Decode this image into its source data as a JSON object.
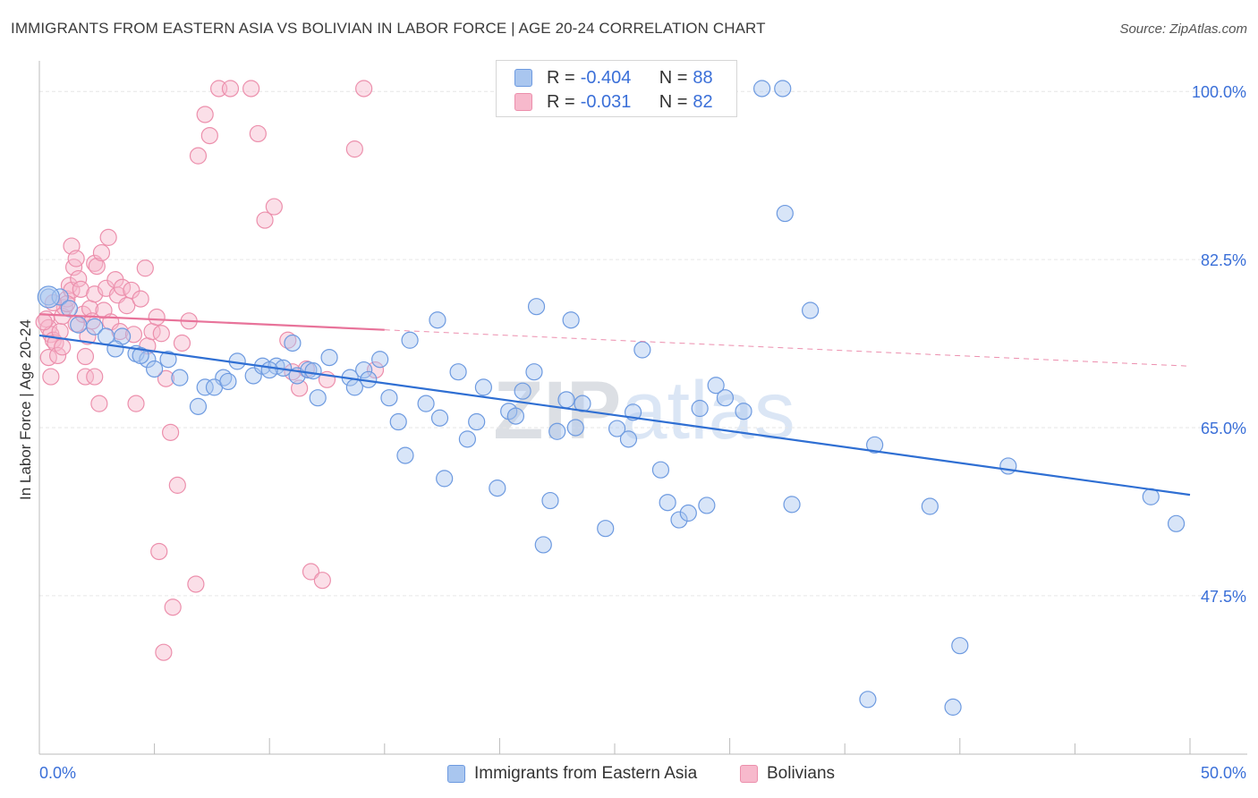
{
  "title": "IMMIGRANTS FROM EASTERN ASIA VS BOLIVIAN IN LABOR FORCE | AGE 20-24 CORRELATION CHART",
  "source": "Source: ZipAtlas.com",
  "watermark": "ZIPatlas",
  "legend": {
    "r_label": "R =",
    "n_label": "N =",
    "items": [
      {
        "r": "-0.404",
        "n": "88",
        "fill": "#a9c6ef",
        "stroke": "#6d9ae0"
      },
      {
        "r": "-0.031",
        "n": "82",
        "fill": "#f7b9cc",
        "stroke": "#ec8fac"
      }
    ]
  },
  "chart_data": {
    "type": "scatter",
    "xlabel": "",
    "ylabel": "In Labor Force | Age 20-24",
    "xlim": [
      0,
      50
    ],
    "ylim": [
      31,
      103
    ],
    "x_tick_labels": [
      "0.0%",
      "50.0%"
    ],
    "y_ticks": [
      47.5,
      65.0,
      82.5,
      100.0
    ],
    "y_tick_labels": [
      "47.5%",
      "65.0%",
      "82.5%",
      "100.0%"
    ],
    "grid": true,
    "legend_position": "top-center",
    "series": [
      {
        "name": "Immigrants from Eastern Asia",
        "color": "#6d9ae0",
        "fill": "#a9c6ef",
        "trend": {
          "x0": 0,
          "y0": 74.6,
          "x1": 50,
          "y1": 58.0,
          "solid_to": 50,
          "color": "#2f6fd3"
        },
        "points": [
          [
            0.4,
            78.6
          ],
          [
            0.9,
            78.6
          ],
          [
            1.3,
            77.4
          ],
          [
            1.7,
            75.7
          ],
          [
            2.4,
            75.5
          ],
          [
            2.9,
            74.5
          ],
          [
            3.6,
            74.5
          ],
          [
            3.3,
            73.2
          ],
          [
            4.2,
            72.7
          ],
          [
            4.7,
            72.1
          ],
          [
            4.4,
            72.5
          ],
          [
            5.6,
            72.1
          ],
          [
            5.0,
            71.1
          ],
          [
            6.1,
            70.2
          ],
          [
            6.9,
            67.2
          ],
          [
            8.0,
            70.2
          ],
          [
            7.2,
            69.2
          ],
          [
            7.6,
            69.2
          ],
          [
            8.2,
            69.8
          ],
          [
            9.3,
            70.4
          ],
          [
            8.6,
            71.9
          ],
          [
            9.7,
            71.4
          ],
          [
            10.3,
            71.4
          ],
          [
            10.6,
            71.2
          ],
          [
            10.0,
            71.0
          ],
          [
            11.0,
            73.8
          ],
          [
            11.2,
            70.4
          ],
          [
            11.7,
            71.0
          ],
          [
            12.1,
            68.1
          ],
          [
            11.9,
            70.9
          ],
          [
            12.6,
            72.3
          ],
          [
            13.5,
            70.2
          ],
          [
            13.7,
            69.2
          ],
          [
            14.1,
            71.0
          ],
          [
            14.3,
            70.0
          ],
          [
            14.8,
            72.1
          ],
          [
            15.2,
            68.1
          ],
          [
            15.6,
            65.6
          ],
          [
            15.9,
            62.1
          ],
          [
            16.1,
            74.1
          ],
          [
            16.8,
            67.5
          ],
          [
            17.3,
            76.2
          ],
          [
            17.4,
            66.0
          ],
          [
            17.6,
            59.7
          ],
          [
            18.2,
            70.8
          ],
          [
            18.6,
            63.8
          ],
          [
            19.3,
            69.2
          ],
          [
            19.9,
            58.7
          ],
          [
            19.0,
            65.6
          ],
          [
            20.4,
            66.7
          ],
          [
            20.7,
            66.2
          ],
          [
            21.0,
            68.8
          ],
          [
            21.5,
            70.8
          ],
          [
            21.6,
            77.6
          ],
          [
            22.2,
            57.4
          ],
          [
            21.9,
            52.8
          ],
          [
            22.5,
            64.6
          ],
          [
            22.9,
            67.9
          ],
          [
            23.1,
            76.2
          ],
          [
            23.3,
            65.0
          ],
          [
            23.6,
            67.5
          ],
          [
            24.6,
            54.5
          ],
          [
            25.1,
            64.9
          ],
          [
            25.6,
            63.8
          ],
          [
            25.8,
            66.6
          ],
          [
            26.2,
            73.1
          ],
          [
            27.0,
            60.6
          ],
          [
            27.3,
            57.2
          ],
          [
            27.8,
            55.4
          ],
          [
            28.2,
            56.1
          ],
          [
            28.7,
            67.0
          ],
          [
            29.0,
            56.9
          ],
          [
            29.4,
            69.4
          ],
          [
            29.8,
            68.1
          ],
          [
            30.6,
            66.7
          ],
          [
            31.4,
            100.3
          ],
          [
            32.3,
            100.3
          ],
          [
            32.4,
            87.3
          ],
          [
            32.7,
            57.0
          ],
          [
            33.5,
            77.2
          ],
          [
            36.3,
            63.2
          ],
          [
            36.0,
            36.7
          ],
          [
            38.7,
            56.8
          ],
          [
            39.7,
            35.9
          ],
          [
            40.0,
            42.3
          ],
          [
            42.1,
            61.0
          ],
          [
            48.3,
            57.8
          ],
          [
            49.4,
            55.0
          ]
        ]
      },
      {
        "name": "Bolivians",
        "color": "#ec8fac",
        "fill": "#f7b9cc",
        "trend": {
          "x0": 0,
          "y0": 76.8,
          "x1": 50,
          "y1": 71.4,
          "solid_to": 15.0,
          "color": "#e8739a"
        },
        "points": [
          [
            0.3,
            76.3
          ],
          [
            0.4,
            75.4
          ],
          [
            0.5,
            74.7
          ],
          [
            0.6,
            74.1
          ],
          [
            0.4,
            72.3
          ],
          [
            0.5,
            70.3
          ],
          [
            0.7,
            73.8
          ],
          [
            0.8,
            72.5
          ],
          [
            0.9,
            75.0
          ],
          [
            1.0,
            73.4
          ],
          [
            1.0,
            76.6
          ],
          [
            1.1,
            77.5
          ],
          [
            1.2,
            78.4
          ],
          [
            1.3,
            79.8
          ],
          [
            1.4,
            79.3
          ],
          [
            1.5,
            81.7
          ],
          [
            1.4,
            83.9
          ],
          [
            1.6,
            75.8
          ],
          [
            1.6,
            82.6
          ],
          [
            1.7,
            80.5
          ],
          [
            1.8,
            79.4
          ],
          [
            1.9,
            76.8
          ],
          [
            2.0,
            72.4
          ],
          [
            2.0,
            70.3
          ],
          [
            2.1,
            74.5
          ],
          [
            2.2,
            77.4
          ],
          [
            2.3,
            76.1
          ],
          [
            2.4,
            78.9
          ],
          [
            2.4,
            82.1
          ],
          [
            2.5,
            81.8
          ],
          [
            2.7,
            83.2
          ],
          [
            2.4,
            70.3
          ],
          [
            2.6,
            67.5
          ],
          [
            2.8,
            77.2
          ],
          [
            2.9,
            79.5
          ],
          [
            3.0,
            84.8
          ],
          [
            3.1,
            76.0
          ],
          [
            3.3,
            80.4
          ],
          [
            3.4,
            78.8
          ],
          [
            3.5,
            75.0
          ],
          [
            3.6,
            79.6
          ],
          [
            3.8,
            77.7
          ],
          [
            4.0,
            79.3
          ],
          [
            4.1,
            74.7
          ],
          [
            4.2,
            67.5
          ],
          [
            4.4,
            78.4
          ],
          [
            4.6,
            81.6
          ],
          [
            4.7,
            73.5
          ],
          [
            4.9,
            75.0
          ],
          [
            5.1,
            76.5
          ],
          [
            5.3,
            74.8
          ],
          [
            5.5,
            70.1
          ],
          [
            5.7,
            64.5
          ],
          [
            6.0,
            59.0
          ],
          [
            6.2,
            73.8
          ],
          [
            5.8,
            46.3
          ],
          [
            5.4,
            41.6
          ],
          [
            6.5,
            76.1
          ],
          [
            6.9,
            93.3
          ],
          [
            7.2,
            97.6
          ],
          [
            7.4,
            95.4
          ],
          [
            7.8,
            100.3
          ],
          [
            8.3,
            100.3
          ],
          [
            9.2,
            100.3
          ],
          [
            9.5,
            95.6
          ],
          [
            9.8,
            86.6
          ],
          [
            10.2,
            88.0
          ],
          [
            10.8,
            74.1
          ],
          [
            11.0,
            70.8
          ],
          [
            11.3,
            69.1
          ],
          [
            11.6,
            71.1
          ],
          [
            11.8,
            50.0
          ],
          [
            12.3,
            49.1
          ],
          [
            12.5,
            70.0
          ],
          [
            13.7,
            94.0
          ],
          [
            14.1,
            100.3
          ],
          [
            14.6,
            71.0
          ],
          [
            5.2,
            52.1
          ],
          [
            6.8,
            48.7
          ],
          [
            1.2,
            77.9
          ],
          [
            0.2,
            76.0
          ],
          [
            0.6,
            78.0
          ]
        ]
      }
    ]
  }
}
